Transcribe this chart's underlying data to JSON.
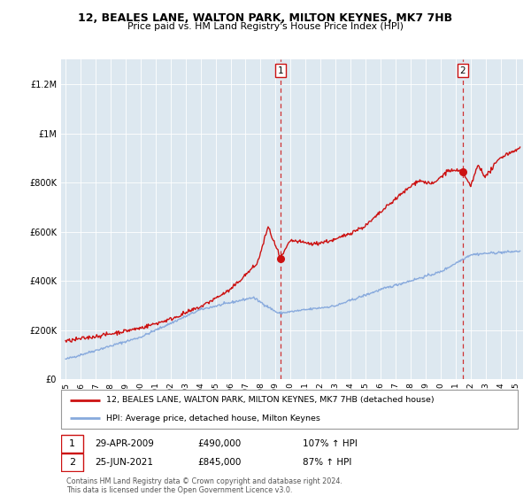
{
  "title": "12, BEALES LANE, WALTON PARK, MILTON KEYNES, MK7 7HB",
  "subtitle": "Price paid vs. HM Land Registry's House Price Index (HPI)",
  "bg_color": "#dde8f0",
  "line1_color": "#cc1111",
  "line2_color": "#88aadd",
  "sale1_date": 2009.32,
  "sale1_price": 490000,
  "sale2_date": 2021.48,
  "sale2_price": 845000,
  "legend1": "12, BEALES LANE, WALTON PARK, MILTON KEYNES, MK7 7HB (detached house)",
  "legend2": "HPI: Average price, detached house, Milton Keynes",
  "annotation1_date": "29-APR-2009",
  "annotation1_price": "£490,000",
  "annotation1_hpi": "107% ↑ HPI",
  "annotation2_date": "25-JUN-2021",
  "annotation2_price": "£845,000",
  "annotation2_hpi": "87% ↑ HPI",
  "footer1": "Contains HM Land Registry data © Crown copyright and database right 2024.",
  "footer2": "This data is licensed under the Open Government Licence v3.0.",
  "ylim": [
    0,
    1300000
  ],
  "xlim_start": 1994.7,
  "xlim_end": 2025.5
}
